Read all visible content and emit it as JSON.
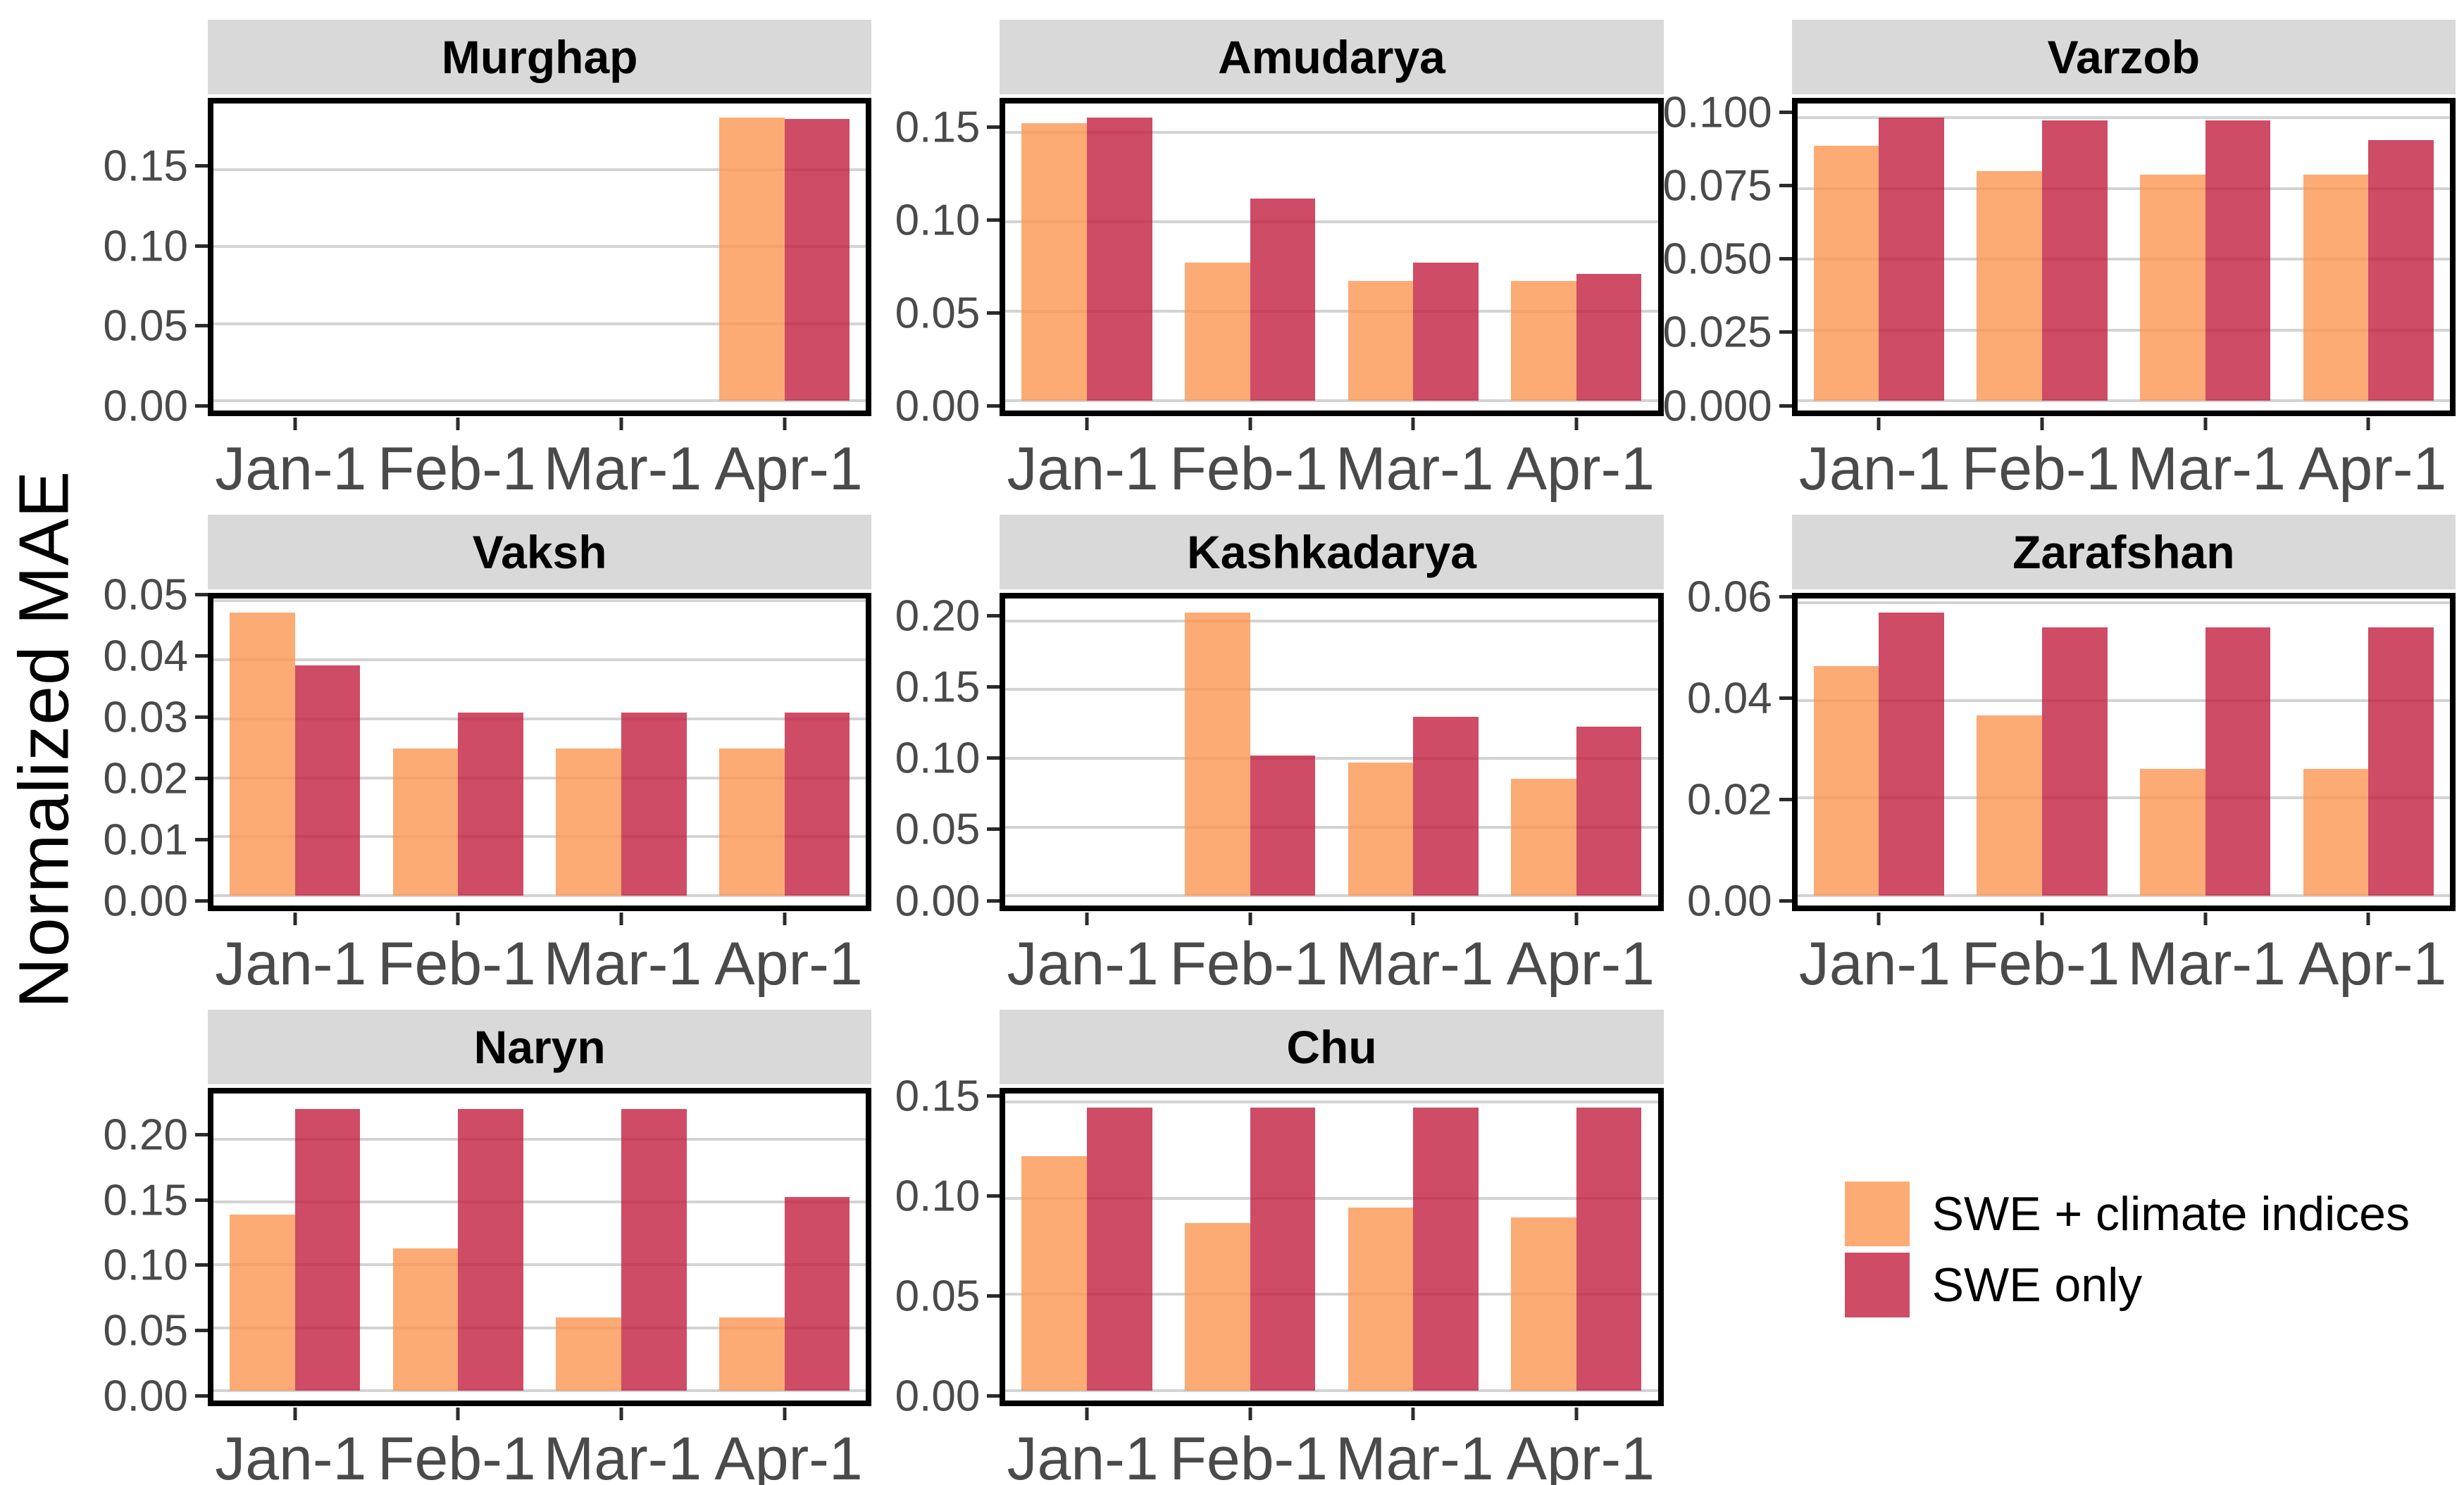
{
  "ylabel": "Normalized MAE",
  "legend": {
    "items": [
      {
        "label": "SWE + climate indices",
        "color": "#FCAB74"
      },
      {
        "label": "SWE only",
        "color": "#CE4C66"
      }
    ]
  },
  "chart_data": {
    "type": "bar",
    "layout": "faceted-3x3-grid",
    "categories": [
      "Jan-1",
      "Feb-1",
      "Mar-1",
      "Apr-1"
    ],
    "series_names": [
      "SWE + climate indices",
      "SWE only"
    ],
    "colors": {
      "swe_climate": "#FCAB74",
      "swe_only": "#CE4C66"
    },
    "ylabel": "Normalized MAE",
    "grid": "major-horizontal-only",
    "legend_position": "bottom-right-cell",
    "panels": [
      {
        "title": "Murghap",
        "ymax": 0.193,
        "yticks": [
          0,
          0.05,
          0.1,
          0.15
        ],
        "ytick_labels": [
          "0.00",
          "0.05",
          "0.10",
          "0.15"
        ],
        "swe_climate": [
          null,
          null,
          null,
          0.184
        ],
        "swe_only": [
          null,
          null,
          null,
          0.183
        ]
      },
      {
        "title": "Amudarya",
        "ymax": 0.166,
        "yticks": [
          0,
          0.05,
          0.1,
          0.15
        ],
        "ytick_labels": [
          "0.00",
          "0.05",
          "0.10",
          "0.15"
        ],
        "swe_climate": [
          0.155,
          0.077,
          0.067,
          0.067
        ],
        "swe_only": [
          0.158,
          0.113,
          0.077,
          0.071
        ]
      },
      {
        "title": "Varzob",
        "ymax": 0.105,
        "yticks": [
          0,
          0.025,
          0.05,
          0.075,
          0.1
        ],
        "ytick_labels": [
          "0.000",
          "0.025",
          "0.050",
          "0.075",
          "0.100"
        ],
        "swe_climate": [
          0.09,
          0.081,
          0.08,
          0.08
        ],
        "swe_only": [
          0.1,
          0.099,
          0.099,
          0.092
        ]
      },
      {
        "title": "Vaksh",
        "ymax": 0.0504,
        "yticks": [
          0,
          0.01,
          0.02,
          0.03,
          0.04,
          0.05
        ],
        "ytick_labels": [
          "0.00",
          "0.01",
          "0.02",
          "0.03",
          "0.04",
          "0.05"
        ],
        "swe_climate": [
          0.048,
          0.025,
          0.025,
          0.025
        ],
        "swe_only": [
          0.039,
          0.031,
          0.031,
          0.031
        ]
      },
      {
        "title": "Kashkadarya",
        "ymax": 0.2163,
        "yticks": [
          0,
          0.05,
          0.1,
          0.15,
          0.2
        ],
        "ytick_labels": [
          "0.00",
          "0.05",
          "0.10",
          "0.15",
          "0.20"
        ],
        "swe_climate": [
          null,
          0.206,
          0.097,
          0.085
        ],
        "swe_only": [
          null,
          0.102,
          0.13,
          0.123
        ]
      },
      {
        "title": "Zarafshan",
        "ymax": 0.0609,
        "yticks": [
          0,
          0.02,
          0.04,
          0.06
        ],
        "ytick_labels": [
          "0.00",
          "0.02",
          "0.04",
          "0.06"
        ],
        "swe_climate": [
          0.047,
          0.037,
          0.026,
          0.026
        ],
        "swe_only": [
          0.058,
          0.055,
          0.055,
          0.055
        ]
      },
      {
        "title": "Naryn",
        "ymax": 0.2362,
        "yticks": [
          0,
          0.05,
          0.1,
          0.15,
          0.2
        ],
        "ytick_labels": [
          "0.00",
          "0.05",
          "0.10",
          "0.15",
          "0.20"
        ],
        "swe_climate": [
          0.14,
          0.113,
          0.058,
          0.058
        ],
        "swe_only": [
          0.224,
          0.224,
          0.224,
          0.154
        ]
      },
      {
        "title": "Chu",
        "ymax": 0.1544,
        "yticks": [
          0,
          0.05,
          0.1,
          0.15
        ],
        "ytick_labels": [
          "0.00",
          "0.05",
          "0.10",
          "0.15"
        ],
        "swe_climate": [
          0.122,
          0.087,
          0.095,
          0.09
        ],
        "swe_only": [
          0.147,
          0.147,
          0.147,
          0.147
        ]
      }
    ]
  }
}
